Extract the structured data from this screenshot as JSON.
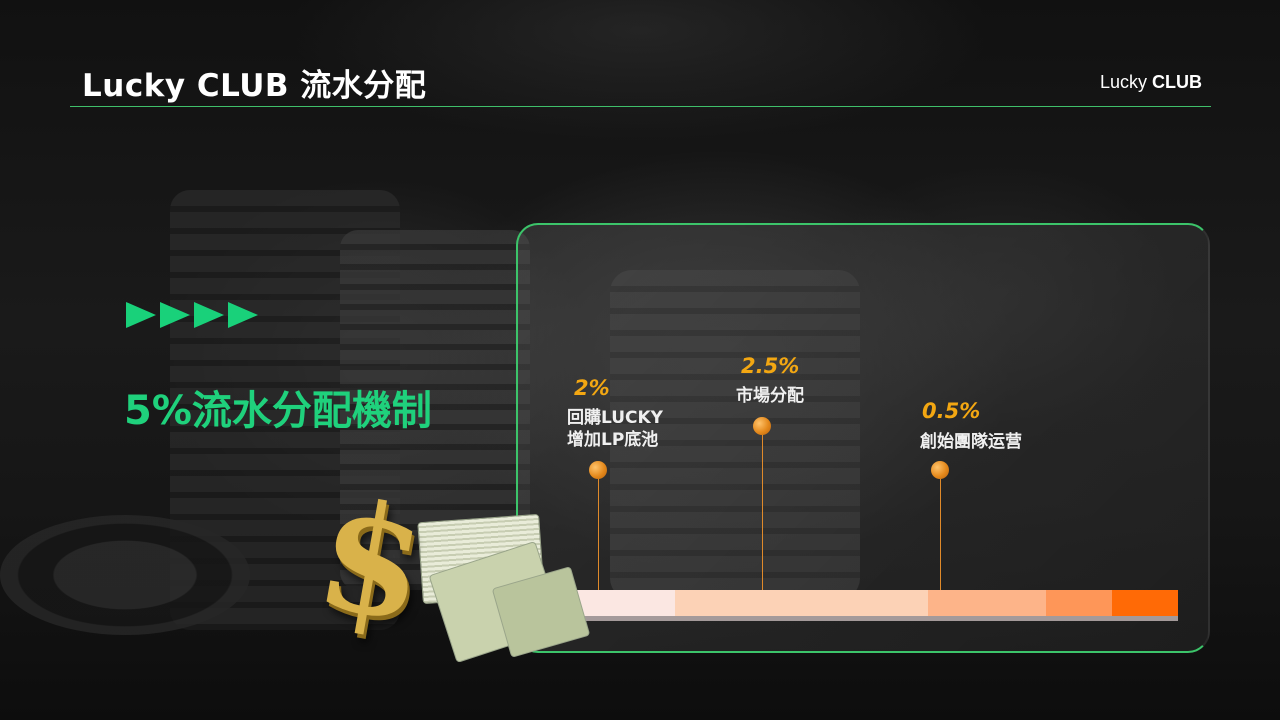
{
  "header": {
    "title": "Lucky CLUB  流水分配",
    "brand_prefix": "Lucky",
    "brand_bold": "CLUB"
  },
  "left": {
    "headline": "5%流水分配機制"
  },
  "distribution": [
    {
      "percent": "2%",
      "label_lines": [
        "回購LUCKY",
        "增加LP底池"
      ]
    },
    {
      "percent": "2.5%",
      "label_lines": [
        "市場分配"
      ]
    },
    {
      "percent": "0.5%",
      "label_lines": [
        "創始團隊运营"
      ]
    }
  ],
  "bar_colors": [
    "#fbe7e2",
    "#fcd2b6",
    "#fdb489",
    "#fe9658",
    "#ff6a06"
  ],
  "colors": {
    "accent_green": "#1fd17c",
    "accent_orange": "#f3a712"
  }
}
